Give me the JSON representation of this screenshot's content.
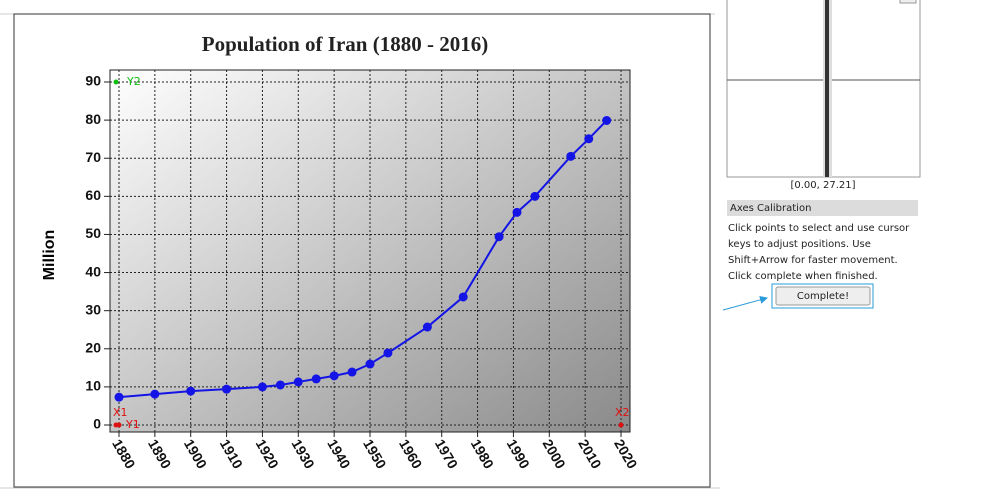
{
  "chart_data": {
    "type": "line",
    "title": "Population of Iran (1880 - 2016)",
    "y_label": "Million",
    "x": [
      1880,
      1890,
      1900,
      1910,
      1920,
      1925,
      1930,
      1935,
      1940,
      1945,
      1950,
      1955,
      1966,
      1976,
      1986,
      1991,
      1996,
      2006,
      2011,
      2016
    ],
    "values": [
      7.3,
      8.1,
      8.9,
      9.4,
      10.0,
      10.5,
      11.3,
      12.1,
      12.9,
      13.9,
      16.0,
      18.9,
      25.7,
      33.6,
      49.4,
      55.8,
      60.0,
      70.5,
      75.1,
      79.9
    ],
    "color": "#1414e6",
    "xlim": [
      1880,
      2020
    ],
    "ylim": [
      0,
      90
    ],
    "xticks": [
      1880,
      1890,
      1900,
      1910,
      1920,
      1930,
      1940,
      1950,
      1960,
      1970,
      1980,
      1990,
      2000,
      2010,
      2020
    ],
    "yticks": [
      0,
      10,
      20,
      30,
      40,
      50,
      60,
      70,
      80,
      90
    ],
    "grid": true,
    "markers": [
      {
        "label": "X1",
        "color": "#e01010"
      },
      {
        "label": "Y1",
        "color": "#e01010"
      },
      {
        "label": "X2",
        "color": "#e01010"
      },
      {
        "label": "Y2",
        "color": "#10c010"
      }
    ]
  },
  "panel": {
    "coords": "[0.00, 27.21]",
    "heading": "Axes Calibration",
    "instructions": [
      "Click points to select and use cursor",
      "keys to adjust positions. Use",
      "Shift+Arrow for faster movement.",
      "Click complete when finished."
    ],
    "button": "Complete!"
  }
}
